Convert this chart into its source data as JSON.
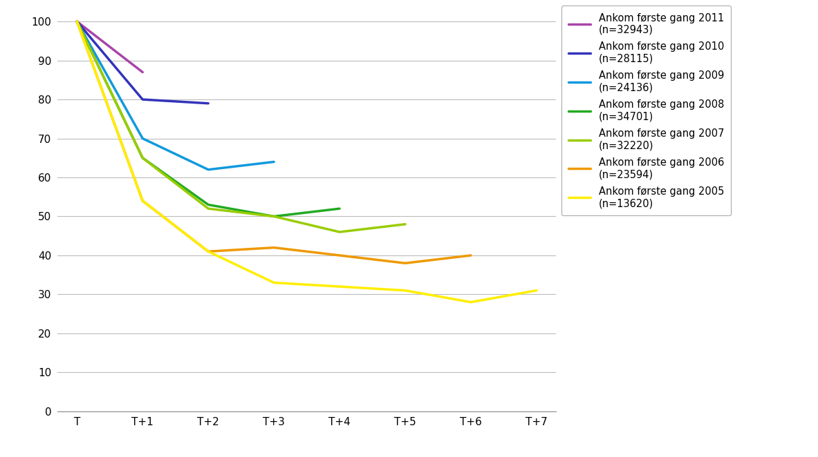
{
  "series": [
    {
      "label": "Ankom første gang 2011\n(n=32943)",
      "color": "#AA44AA",
      "data": [
        100,
        87,
        null,
        null,
        null,
        null,
        null,
        null
      ]
    },
    {
      "label": "Ankom første gang 2010\n(n=28115)",
      "color": "#3333BB",
      "data": [
        100,
        80,
        79,
        null,
        null,
        null,
        null,
        null
      ]
    },
    {
      "label": "Ankom første gang 2009\n(n=24136)",
      "color": "#1199DD",
      "data": [
        100,
        70,
        62,
        64,
        null,
        null,
        null,
        null
      ]
    },
    {
      "label": "Ankom første gang 2008\n(n=34701)",
      "color": "#22AA22",
      "data": [
        100,
        65,
        53,
        50,
        52,
        null,
        null,
        null
      ]
    },
    {
      "label": "Ankom første gang 2007\n(n=32220)",
      "color": "#99CC00",
      "data": [
        100,
        65,
        52,
        50,
        46,
        48,
        null,
        null
      ]
    },
    {
      "label": "Ankom første gang 2006\n(n=23594)",
      "color": "#EE9900",
      "data": [
        100,
        54,
        41,
        42,
        40,
        38,
        40,
        null
      ]
    },
    {
      "label": "Ankom første gang 2005\n(n=13620)",
      "color": "#FFEE00",
      "data": [
        100,
        54,
        41,
        33,
        32,
        31,
        28,
        31
      ]
    }
  ],
  "x_labels": [
    "T",
    "T+1",
    "T+2",
    "T+3",
    "T+4",
    "T+5",
    "T+6",
    "T+7"
  ],
  "ylim": [
    0,
    102
  ],
  "yticks": [
    0,
    10,
    20,
    30,
    40,
    50,
    60,
    70,
    80,
    90,
    100
  ],
  "background_color": "#ffffff",
  "line_width": 2.5,
  "legend_fontsize": 10.5,
  "tick_fontsize": 11,
  "fig_width": 11.83,
  "fig_height": 6.62,
  "fig_dpi": 100
}
